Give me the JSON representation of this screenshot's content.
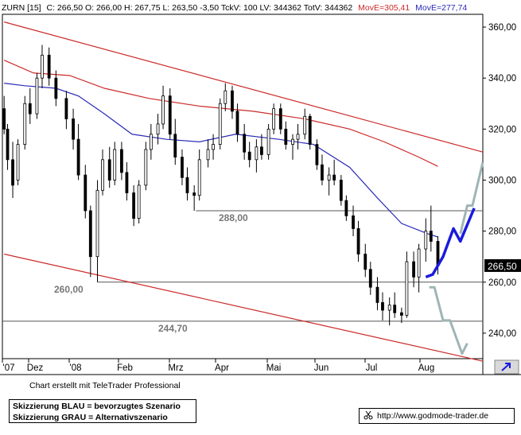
{
  "header": {
    "symbol": "ZURN [15]",
    "ohlc": "C: 266,50 O: 266,00 H: 267,75 L: 263,50 -3,50 TckV: 100 LV: 344362 TotV: 344362",
    "ma_fast": "MovE=305,41",
    "ma_slow": "MovE=277,74",
    "ma_fast_color": "#cc2a2a",
    "ma_slow_color": "#2a2ab8"
  },
  "chart_data": {
    "type": "candlestick",
    "instrument": "ZURN",
    "y_range": [
      230,
      365
    ],
    "y_ticks": [
      360,
      340,
      320,
      300,
      280,
      260,
      240
    ],
    "y_tick_labels": [
      "360,00",
      "340,00",
      "320,00",
      "300,00",
      "280,00",
      "260,00",
      "240,00"
    ],
    "last_price": 266.5,
    "last_price_label": "266,50",
    "x_labels": [
      "'07",
      "Dez",
      "'08",
      "Feb",
      "Mrz",
      "Apr",
      "Mai",
      "Jun",
      "Jul",
      "Aug"
    ],
    "levels": [
      {
        "label": "288,00",
        "value": 288.0
      },
      {
        "label": "260,00",
        "value": 260.0
      },
      {
        "label": "244,70",
        "value": 244.7
      }
    ],
    "channel_color": "#cc2a2a",
    "scenario_blue_color": "#1a1adf",
    "scenario_grey_color": "#9fb5b5",
    "grid": false,
    "x_range": [
      "2007-11-27",
      "2008-08-31"
    ],
    "candles": [
      {
        "date": "2007-11-28",
        "open": 328,
        "high": 333,
        "low": 318,
        "close": 320
      },
      {
        "date": "2007-11-30",
        "open": 320,
        "high": 322,
        "low": 304,
        "close": 308
      },
      {
        "date": "2007-12-03",
        "open": 308,
        "high": 315,
        "low": 293,
        "close": 298
      },
      {
        "date": "2007-12-06",
        "open": 300,
        "high": 316,
        "low": 298,
        "close": 314
      },
      {
        "date": "2007-12-10",
        "open": 314,
        "high": 333,
        "low": 312,
        "close": 330
      },
      {
        "date": "2007-12-13",
        "open": 330,
        "high": 336,
        "low": 322,
        "close": 326
      },
      {
        "date": "2007-12-17",
        "open": 326,
        "high": 342,
        "low": 324,
        "close": 340
      },
      {
        "date": "2007-12-20",
        "open": 340,
        "high": 353,
        "low": 336,
        "close": 349
      },
      {
        "date": "2007-12-24",
        "open": 349,
        "high": 352,
        "low": 337,
        "close": 340
      },
      {
        "date": "2007-12-28",
        "open": 340,
        "high": 343,
        "low": 329,
        "close": 332
      },
      {
        "date": "2008-01-03",
        "open": 332,
        "high": 335,
        "low": 320,
        "close": 324
      },
      {
        "date": "2008-01-07",
        "open": 324,
        "high": 328,
        "low": 312,
        "close": 316
      },
      {
        "date": "2008-01-10",
        "open": 316,
        "high": 322,
        "low": 300,
        "close": 302
      },
      {
        "date": "2008-01-14",
        "open": 302,
        "high": 306,
        "low": 285,
        "close": 288
      },
      {
        "date": "2008-01-17",
        "open": 288,
        "high": 290,
        "low": 262,
        "close": 270
      },
      {
        "date": "2008-01-21",
        "open": 270,
        "high": 300,
        "low": 260,
        "close": 296
      },
      {
        "date": "2008-01-24",
        "open": 296,
        "high": 312,
        "low": 294,
        "close": 308
      },
      {
        "date": "2008-01-28",
        "open": 308,
        "high": 313,
        "low": 297,
        "close": 300
      },
      {
        "date": "2008-01-31",
        "open": 300,
        "high": 315,
        "low": 298,
        "close": 312
      },
      {
        "date": "2008-02-04",
        "open": 312,
        "high": 315,
        "low": 300,
        "close": 303
      },
      {
        "date": "2008-02-07",
        "open": 303,
        "high": 307,
        "low": 292,
        "close": 295
      },
      {
        "date": "2008-02-11",
        "open": 295,
        "high": 298,
        "low": 282,
        "close": 285
      },
      {
        "date": "2008-02-14",
        "open": 285,
        "high": 300,
        "low": 283,
        "close": 298
      },
      {
        "date": "2008-02-18",
        "open": 298,
        "high": 315,
        "low": 296,
        "close": 312
      },
      {
        "date": "2008-02-21",
        "open": 312,
        "high": 322,
        "low": 308,
        "close": 318
      },
      {
        "date": "2008-02-25",
        "open": 318,
        "high": 326,
        "low": 314,
        "close": 322
      },
      {
        "date": "2008-02-28",
        "open": 322,
        "high": 337,
        "low": 320,
        "close": 333
      },
      {
        "date": "2008-03-03",
        "open": 333,
        "high": 336,
        "low": 316,
        "close": 318
      },
      {
        "date": "2008-03-06",
        "open": 318,
        "high": 324,
        "low": 306,
        "close": 309
      },
      {
        "date": "2008-03-10",
        "open": 309,
        "high": 312,
        "low": 298,
        "close": 301
      },
      {
        "date": "2008-03-13",
        "open": 301,
        "high": 305,
        "low": 292,
        "close": 295
      },
      {
        "date": "2008-03-17",
        "open": 295,
        "high": 298,
        "low": 288,
        "close": 294
      },
      {
        "date": "2008-03-20",
        "open": 294,
        "high": 312,
        "low": 292,
        "close": 308
      },
      {
        "date": "2008-03-25",
        "open": 308,
        "high": 316,
        "low": 305,
        "close": 312
      },
      {
        "date": "2008-03-28",
        "open": 312,
        "high": 318,
        "low": 308,
        "close": 314
      },
      {
        "date": "2008-04-01",
        "open": 314,
        "high": 332,
        "low": 312,
        "close": 330
      },
      {
        "date": "2008-04-04",
        "open": 330,
        "high": 338,
        "low": 327,
        "close": 335
      },
      {
        "date": "2008-04-08",
        "open": 335,
        "high": 337,
        "low": 324,
        "close": 327
      },
      {
        "date": "2008-04-11",
        "open": 327,
        "high": 330,
        "low": 315,
        "close": 318
      },
      {
        "date": "2008-04-15",
        "open": 318,
        "high": 322,
        "low": 308,
        "close": 311
      },
      {
        "date": "2008-04-18",
        "open": 311,
        "high": 315,
        "low": 305,
        "close": 308
      },
      {
        "date": "2008-04-22",
        "open": 308,
        "high": 316,
        "low": 303,
        "close": 313
      },
      {
        "date": "2008-04-25",
        "open": 313,
        "high": 318,
        "low": 308,
        "close": 310
      },
      {
        "date": "2008-04-29",
        "open": 310,
        "high": 322,
        "low": 308,
        "close": 320
      },
      {
        "date": "2008-05-02",
        "open": 320,
        "high": 330,
        "low": 318,
        "close": 328
      },
      {
        "date": "2008-05-06",
        "open": 328,
        "high": 330,
        "low": 318,
        "close": 320
      },
      {
        "date": "2008-05-09",
        "open": 320,
        "high": 323,
        "low": 312,
        "close": 314
      },
      {
        "date": "2008-05-13",
        "open": 314,
        "high": 318,
        "low": 308,
        "close": 316
      },
      {
        "date": "2008-05-16",
        "open": 316,
        "high": 322,
        "low": 312,
        "close": 318
      },
      {
        "date": "2008-05-20",
        "open": 318,
        "high": 328,
        "low": 316,
        "close": 325
      },
      {
        "date": "2008-05-23",
        "open": 325,
        "high": 326,
        "low": 312,
        "close": 314
      },
      {
        "date": "2008-05-27",
        "open": 314,
        "high": 316,
        "low": 304,
        "close": 306
      },
      {
        "date": "2008-05-30",
        "open": 306,
        "high": 310,
        "low": 298,
        "close": 300
      },
      {
        "date": "2008-06-03",
        "open": 300,
        "high": 305,
        "low": 294,
        "close": 302
      },
      {
        "date": "2008-06-06",
        "open": 302,
        "high": 308,
        "low": 298,
        "close": 300
      },
      {
        "date": "2008-06-10",
        "open": 300,
        "high": 302,
        "low": 290,
        "close": 292
      },
      {
        "date": "2008-06-13",
        "open": 292,
        "high": 294,
        "low": 284,
        "close": 286
      },
      {
        "date": "2008-06-17",
        "open": 286,
        "high": 290,
        "low": 278,
        "close": 281
      },
      {
        "date": "2008-06-20",
        "open": 281,
        "high": 284,
        "low": 268,
        "close": 271
      },
      {
        "date": "2008-06-24",
        "open": 271,
        "high": 275,
        "low": 262,
        "close": 265
      },
      {
        "date": "2008-06-27",
        "open": 265,
        "high": 268,
        "low": 255,
        "close": 258
      },
      {
        "date": "2008-07-01",
        "open": 258,
        "high": 262,
        "low": 249,
        "close": 252
      },
      {
        "date": "2008-07-04",
        "open": 252,
        "high": 256,
        "low": 245,
        "close": 249
      },
      {
        "date": "2008-07-08",
        "open": 249,
        "high": 254,
        "low": 243,
        "close": 251
      },
      {
        "date": "2008-07-11",
        "open": 251,
        "high": 256,
        "low": 246,
        "close": 248
      },
      {
        "date": "2008-07-15",
        "open": 248,
        "high": 250,
        "low": 244,
        "close": 247
      },
      {
        "date": "2008-07-18",
        "open": 247,
        "high": 272,
        "low": 246,
        "close": 268
      },
      {
        "date": "2008-07-22",
        "open": 268,
        "high": 272,
        "low": 258,
        "close": 262
      },
      {
        "date": "2008-07-25",
        "open": 262,
        "high": 275,
        "low": 256,
        "close": 273
      },
      {
        "date": "2008-07-29",
        "open": 273,
        "high": 285,
        "low": 268,
        "close": 280
      },
      {
        "date": "2008-08-01",
        "open": 280,
        "high": 290,
        "low": 272,
        "close": 276
      },
      {
        "date": "2008-08-05",
        "open": 276,
        "high": 278,
        "low": 263,
        "close": 266.5
      }
    ],
    "series": [
      {
        "name": "MovE=305,41",
        "color": "#cc2a2a",
        "points": [
          [
            "2007-11-28",
            347
          ],
          [
            "2007-12-15",
            342
          ],
          [
            "2008-01-05",
            341
          ],
          [
            "2008-01-25",
            336
          ],
          [
            "2008-02-20",
            332
          ],
          [
            "2008-03-20",
            329
          ],
          [
            "2008-04-20",
            327
          ],
          [
            "2008-05-20",
            324
          ],
          [
            "2008-06-15",
            320
          ],
          [
            "2008-07-05",
            315
          ],
          [
            "2008-07-25",
            309
          ],
          [
            "2008-08-05",
            305.4
          ]
        ]
      },
      {
        "name": "MovE=277,74",
        "color": "#2a2ab8",
        "points": [
          [
            "2007-11-28",
            338
          ],
          [
            "2007-12-10",
            337
          ],
          [
            "2007-12-28",
            336
          ],
          [
            "2008-01-10",
            333
          ],
          [
            "2008-01-25",
            326
          ],
          [
            "2008-02-10",
            318
          ],
          [
            "2008-03-01",
            316
          ],
          [
            "2008-03-20",
            315
          ],
          [
            "2008-04-10",
            318
          ],
          [
            "2008-05-05",
            316
          ],
          [
            "2008-05-25",
            314
          ],
          [
            "2008-06-15",
            305
          ],
          [
            "2008-07-01",
            293
          ],
          [
            "2008-07-15",
            283
          ],
          [
            "2008-07-30",
            279
          ],
          [
            "2008-08-05",
            277.7
          ]
        ]
      }
    ],
    "channel_lines": [
      {
        "from": [
          "2007-11-28",
          362
        ],
        "to": [
          "2008-08-31",
          311
        ]
      },
      {
        "from": [
          "2007-11-28",
          271
        ],
        "to": [
          "2008-08-31",
          229
        ]
      }
    ],
    "level_lines": [
      {
        "value": 288.0,
        "from": "2008-03-18",
        "to": "2008-08-31"
      },
      {
        "value": 260.0,
        "from": "2008-01-21",
        "to": "2008-08-31"
      },
      {
        "value": 244.7,
        "from": "2007-11-27",
        "to": "2008-08-31"
      }
    ],
    "scenario_blue": [
      [
        "2008-07-29",
        262
      ],
      [
        "2008-08-02",
        263
      ],
      [
        "2008-08-08",
        270
      ],
      [
        "2008-08-14",
        281
      ],
      [
        "2008-08-18",
        276
      ],
      [
        "2008-08-26",
        289
      ]
    ],
    "scenario_grey_up": [
      [
        "2008-08-18",
        279
      ],
      [
        "2008-08-22",
        290
      ],
      [
        "2008-08-25",
        290
      ],
      [
        "2008-08-31",
        307
      ]
    ],
    "scenario_grey_down": [
      [
        "2008-07-31",
        258
      ],
      [
        "2008-08-03",
        258
      ],
      [
        "2008-08-08",
        245
      ],
      [
        "2008-08-12",
        245
      ],
      [
        "2008-08-19",
        232
      ],
      [
        "2008-08-22",
        236
      ]
    ]
  },
  "footer": {
    "credit": "Chart erstellt mit TeleTrader Professional",
    "legend_blue": "Skizzierung BLAU = bevorzugtes Szenario",
    "legend_grey": "Skizzierung GRAU = Alternativszenario",
    "url": "http://www.godmode-trader.de"
  }
}
